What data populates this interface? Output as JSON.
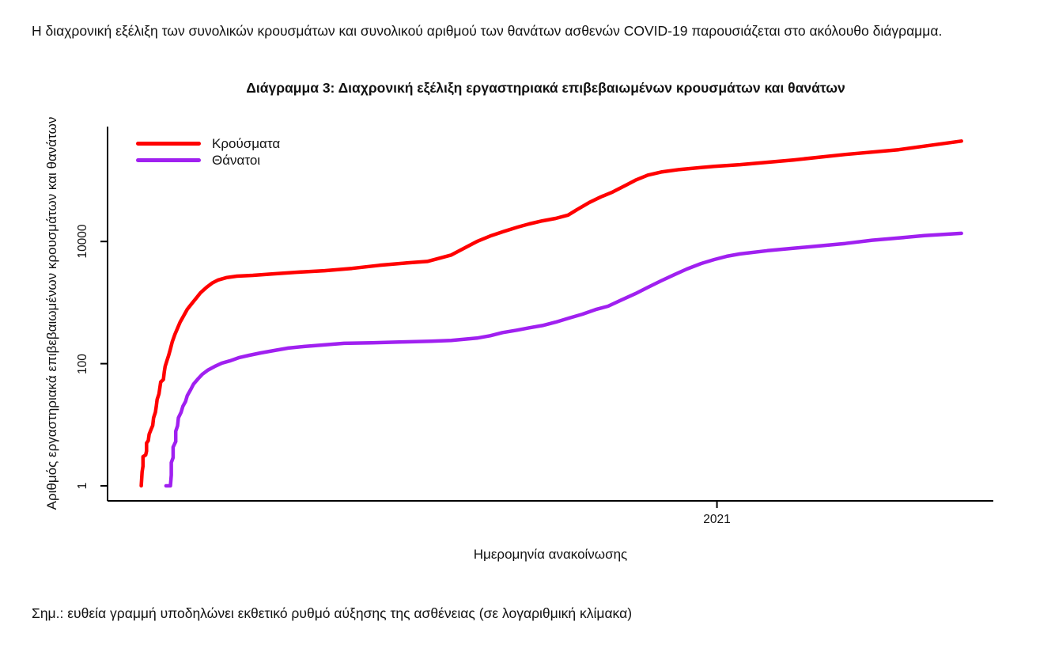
{
  "intro": {
    "text": "Η διαχρονική εξέλιξη των συνολικών κρουσμάτων και συνολικού αριθμού των θανάτων ασθενών COVID-19 παρουσιάζεται στο ακόλουθο διάγραμμα."
  },
  "note": {
    "text": "Σημ.: ευθεία γραμμή υποδηλώνει εκθετικό ρυθμό αύξησης της ασθένειας (σε λογαριθμική κλίμακα)"
  },
  "chart_data": {
    "type": "line",
    "title": "Διάγραμμα 3: Διαχρονική εξέλιξη εργαστηριακά επιβεβαιωμένων κρουσμάτων και θανάτων",
    "xlabel": "Ημερομηνία ανακοίνωσης",
    "ylabel": "Αριθμός εργαστηριακά επιβεβαιωμένων κρουσμάτων και θανάτων",
    "y_scale": "log10",
    "ylim": [
      1,
      700000
    ],
    "grid": false,
    "legend_position": "top-left",
    "axis_color": "#000000",
    "y_ticks": [
      {
        "label": "1",
        "value": 1
      },
      {
        "label": "100",
        "value": 100
      },
      {
        "label": "10000",
        "value": 10000
      }
    ],
    "x_ticks": [
      {
        "label": "2021",
        "x_frac": 0.688
      }
    ],
    "series": [
      {
        "name": "Κρούσματα",
        "color": "#ff0000",
        "points": [
          [
            0.038,
            1
          ],
          [
            0.039,
            1.7
          ],
          [
            0.04,
            2.1
          ],
          [
            0.04,
            3.0
          ],
          [
            0.043,
            3.2
          ],
          [
            0.044,
            3.7
          ],
          [
            0.044,
            5.0
          ],
          [
            0.046,
            5.5
          ],
          [
            0.047,
            7.0
          ],
          [
            0.049,
            8.3
          ],
          [
            0.051,
            9.7
          ],
          [
            0.052,
            13
          ],
          [
            0.054,
            16
          ],
          [
            0.055,
            20
          ],
          [
            0.056,
            26
          ],
          [
            0.058,
            32
          ],
          [
            0.059,
            40
          ],
          [
            0.06,
            50
          ],
          [
            0.063,
            55
          ],
          [
            0.064,
            73
          ],
          [
            0.065,
            90
          ],
          [
            0.067,
            111
          ],
          [
            0.069,
            137
          ],
          [
            0.071,
            174
          ],
          [
            0.073,
            228
          ],
          [
            0.076,
            300
          ],
          [
            0.079,
            380
          ],
          [
            0.082,
            480
          ],
          [
            0.086,
            610
          ],
          [
            0.09,
            775
          ],
          [
            0.095,
            960
          ],
          [
            0.1,
            1180
          ],
          [
            0.105,
            1450
          ],
          [
            0.112,
            1790
          ],
          [
            0.118,
            2080
          ],
          [
            0.125,
            2350
          ],
          [
            0.134,
            2560
          ],
          [
            0.146,
            2710
          ],
          [
            0.164,
            2790
          ],
          [
            0.187,
            2950
          ],
          [
            0.213,
            3130
          ],
          [
            0.245,
            3330
          ],
          [
            0.276,
            3630
          ],
          [
            0.307,
            4080
          ],
          [
            0.338,
            4460
          ],
          [
            0.361,
            4720
          ],
          [
            0.388,
            6000
          ],
          [
            0.405,
            8090
          ],
          [
            0.417,
            10000
          ],
          [
            0.432,
            12300
          ],
          [
            0.446,
            14400
          ],
          [
            0.463,
            17200
          ],
          [
            0.476,
            19400
          ],
          [
            0.491,
            21800
          ],
          [
            0.506,
            23900
          ],
          [
            0.52,
            27100
          ],
          [
            0.53,
            33300
          ],
          [
            0.544,
            43600
          ],
          [
            0.557,
            53700
          ],
          [
            0.57,
            64400
          ],
          [
            0.584,
            81900
          ],
          [
            0.596,
            101000
          ],
          [
            0.61,
            122000
          ],
          [
            0.625,
            137000
          ],
          [
            0.646,
            151000
          ],
          [
            0.685,
            170000
          ],
          [
            0.714,
            181000
          ],
          [
            0.774,
            216000
          ],
          [
            0.833,
            266000
          ],
          [
            0.893,
            318000
          ],
          [
            0.932,
            380000
          ],
          [
            0.964,
            440000
          ]
        ]
      },
      {
        "name": "Θάνατοι",
        "color": "#a020f0",
        "points": [
          [
            0.066,
            1
          ],
          [
            0.071,
            1
          ],
          [
            0.072,
            1.5
          ],
          [
            0.072,
            2.4
          ],
          [
            0.074,
            2.9
          ],
          [
            0.074,
            4.3
          ],
          [
            0.077,
            5.3
          ],
          [
            0.077,
            7.8
          ],
          [
            0.079,
            9.6
          ],
          [
            0.08,
            13
          ],
          [
            0.083,
            16
          ],
          [
            0.085,
            20
          ],
          [
            0.088,
            24
          ],
          [
            0.09,
            30
          ],
          [
            0.094,
            38
          ],
          [
            0.097,
            46
          ],
          [
            0.102,
            56
          ],
          [
            0.107,
            67
          ],
          [
            0.113,
            78
          ],
          [
            0.121,
            90
          ],
          [
            0.129,
            102
          ],
          [
            0.138,
            111
          ],
          [
            0.148,
            125
          ],
          [
            0.16,
            137
          ],
          [
            0.173,
            150
          ],
          [
            0.188,
            164
          ],
          [
            0.204,
            180
          ],
          [
            0.222,
            191
          ],
          [
            0.243,
            202
          ],
          [
            0.267,
            215
          ],
          [
            0.298,
            220
          ],
          [
            0.334,
            227
          ],
          [
            0.365,
            233
          ],
          [
            0.388,
            240
          ],
          [
            0.417,
            262
          ],
          [
            0.432,
            287
          ],
          [
            0.446,
            323
          ],
          [
            0.462,
            353
          ],
          [
            0.476,
            386
          ],
          [
            0.491,
            421
          ],
          [
            0.506,
            478
          ],
          [
            0.521,
            557
          ],
          [
            0.536,
            646
          ],
          [
            0.551,
            770
          ],
          [
            0.565,
            873
          ],
          [
            0.58,
            1100
          ],
          [
            0.596,
            1400
          ],
          [
            0.61,
            1780
          ],
          [
            0.625,
            2270
          ],
          [
            0.64,
            2870
          ],
          [
            0.654,
            3540
          ],
          [
            0.67,
            4350
          ],
          [
            0.685,
            5060
          ],
          [
            0.699,
            5730
          ],
          [
            0.714,
            6270
          ],
          [
            0.745,
            7070
          ],
          [
            0.774,
            7740
          ],
          [
            0.804,
            8480
          ],
          [
            0.833,
            9280
          ],
          [
            0.863,
            10500
          ],
          [
            0.893,
            11400
          ],
          [
            0.922,
            12500
          ],
          [
            0.964,
            13600
          ]
        ]
      }
    ]
  }
}
